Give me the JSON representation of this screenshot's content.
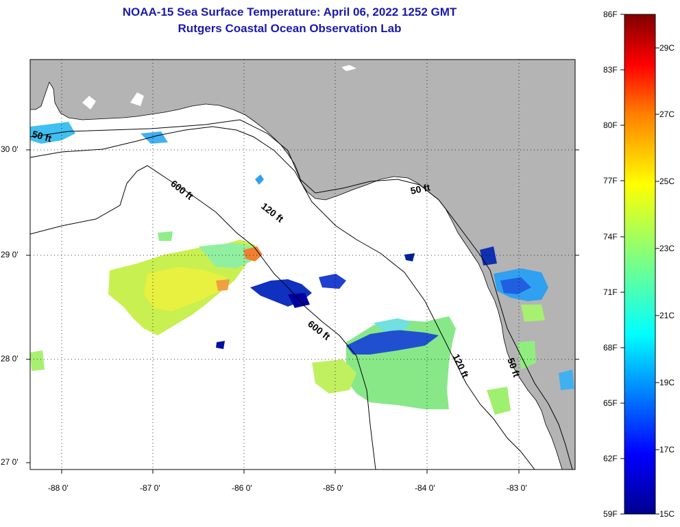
{
  "header": {
    "title": "NOAA-15 Sea Surface Temperature:  April 06, 2022 1252 GMT",
    "subtitle": "Rutgers Coastal Ocean Observation Lab"
  },
  "map": {
    "lat_ticks": [
      "30 0'",
      "29 0'",
      "28 0'",
      "27 0'"
    ],
    "lon_ticks": [
      "-88 0'",
      "-87 0'",
      "-86 0'",
      "-85 0'",
      "-84 0'",
      "-83 0'"
    ],
    "contour_labels": [
      "50 ft",
      "600 ft",
      "120 ft",
      "50 ft",
      "600 ft",
      "120 ft",
      "50 ft"
    ],
    "colors": {
      "land": "#b4b4b4",
      "ocean": "#ffffff",
      "title": "#1a1aa8"
    }
  },
  "colorbar": {
    "f_labels": [
      "86F",
      "83F",
      "80F",
      "77F",
      "74F",
      "71F",
      "68F",
      "65F",
      "62F",
      "59F"
    ],
    "c_labels": [
      "29C",
      "27C",
      "25C",
      "23C",
      "21C",
      "19C",
      "17C",
      "15C"
    ]
  }
}
